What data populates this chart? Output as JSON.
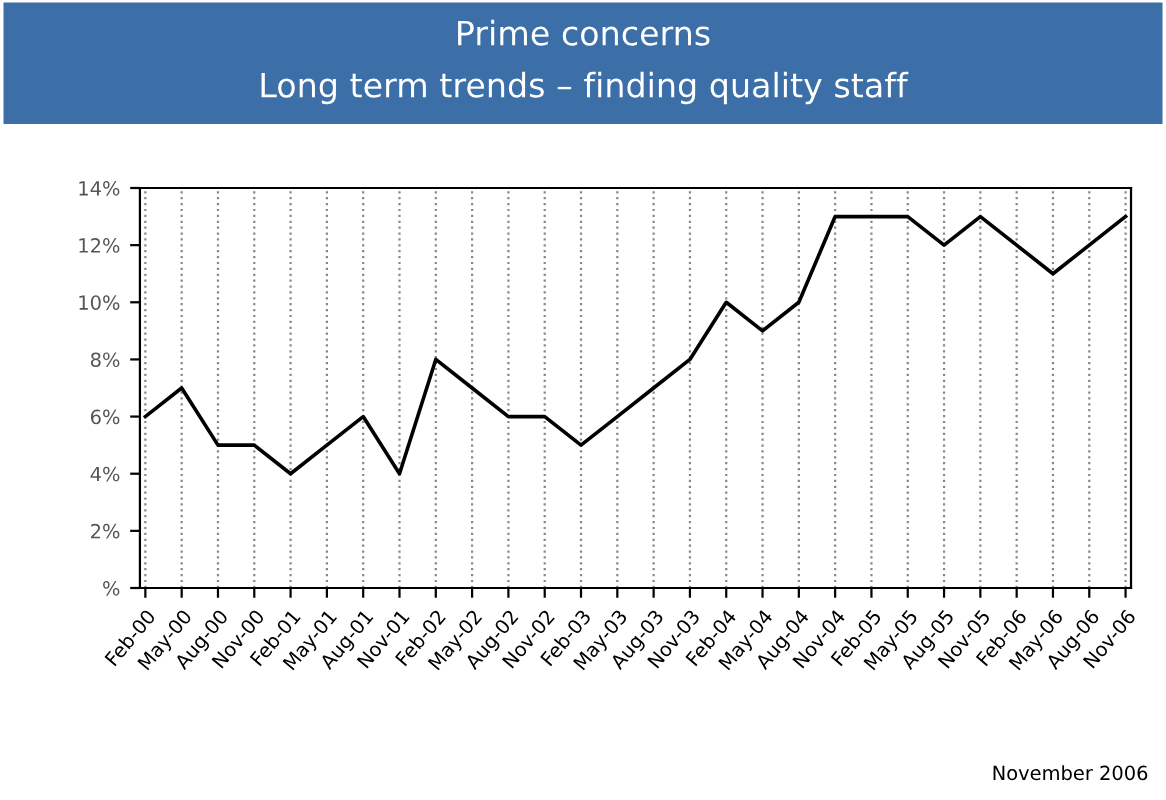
{
  "chart_data": {
    "type": "line",
    "title": "Prime concerns",
    "subtitle": "Long term trends – finding quality staff",
    "categories": [
      "Feb-00",
      "May-00",
      "Aug-00",
      "Nov-00",
      "Feb-01",
      "May-01",
      "Aug-01",
      "Nov-01",
      "Feb-02",
      "May-02",
      "Aug-02",
      "Nov-02",
      "Feb-03",
      "May-03",
      "Aug-03",
      "Nov-03",
      "Feb-04",
      "May-04",
      "Aug-04",
      "Nov-04",
      "Feb-05",
      "May-05",
      "Aug-05",
      "Nov-05",
      "Feb-06",
      "May-06",
      "Aug-06",
      "Nov-06"
    ],
    "series": [
      {
        "color": "#000000",
        "values": [
          6,
          7,
          5,
          5,
          4,
          5,
          6,
          4,
          8,
          7,
          6,
          6,
          5,
          6,
          7,
          8,
          10,
          9,
          10,
          13,
          13,
          13,
          12,
          13,
          12,
          11,
          12,
          13
        ]
      }
    ],
    "ylim": [
      0,
      14
    ],
    "yticks": [
      {
        "value": 0,
        "label": "%"
      },
      {
        "value": 2,
        "label": "2%"
      },
      {
        "value": 4,
        "label": "4%"
      },
      {
        "value": 6,
        "label": "6%"
      },
      {
        "value": 8,
        "label": "8%"
      },
      {
        "value": 10,
        "label": "10%"
      },
      {
        "value": 12,
        "label": "12%"
      },
      {
        "value": 14,
        "label": "14%"
      }
    ],
    "grid": "x",
    "marker": "none",
    "line_style": "solid",
    "annotations": [
      "November 2006"
    ]
  }
}
